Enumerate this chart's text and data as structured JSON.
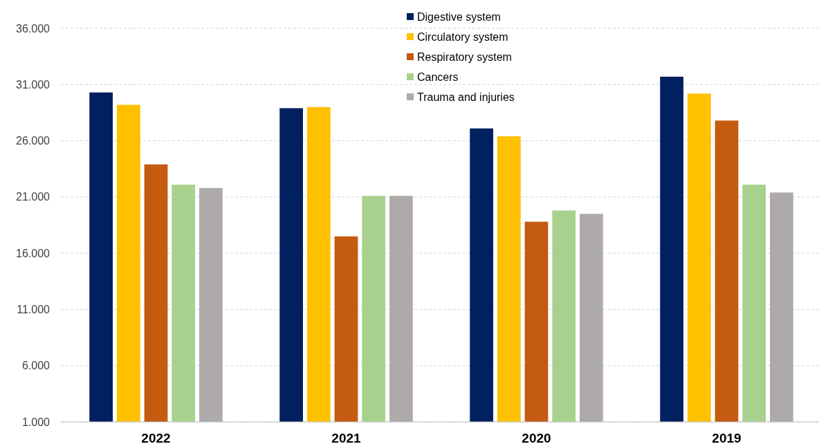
{
  "chart_data": {
    "type": "bar",
    "categories": [
      "2022",
      "2021",
      "2020",
      "2019"
    ],
    "series": [
      {
        "name": "Digestive system",
        "color": "#002060",
        "values": [
          30300,
          28900,
          27100,
          31700
        ]
      },
      {
        "name": "Circulatory system",
        "color": "#ffc000",
        "values": [
          29200,
          29000,
          26400,
          30200
        ]
      },
      {
        "name": "Respiratory system",
        "color": "#c55a11",
        "values": [
          23900,
          17500,
          18800,
          27800
        ]
      },
      {
        "name": "Cancers",
        "color": "#a9d18e",
        "values": [
          22100,
          21100,
          19800,
          22100
        ]
      },
      {
        "name": "Trauma and injuries",
        "color": "#aeaaaa",
        "values": [
          21800,
          21100,
          19500,
          21400
        ]
      }
    ],
    "ylim": [
      1000,
      36000
    ],
    "yticks": [
      {
        "value": 1000,
        "label": "1.000"
      },
      {
        "value": 6000,
        "label": "6.000"
      },
      {
        "value": 11000,
        "label": "11.000"
      },
      {
        "value": 16000,
        "label": "16.000"
      },
      {
        "value": 21000,
        "label": "21.000"
      },
      {
        "value": 26000,
        "label": "26.000"
      },
      {
        "value": 31000,
        "label": "31.000"
      },
      {
        "value": 36000,
        "label": "36.000"
      }
    ],
    "grid": "y",
    "legend": "top"
  }
}
